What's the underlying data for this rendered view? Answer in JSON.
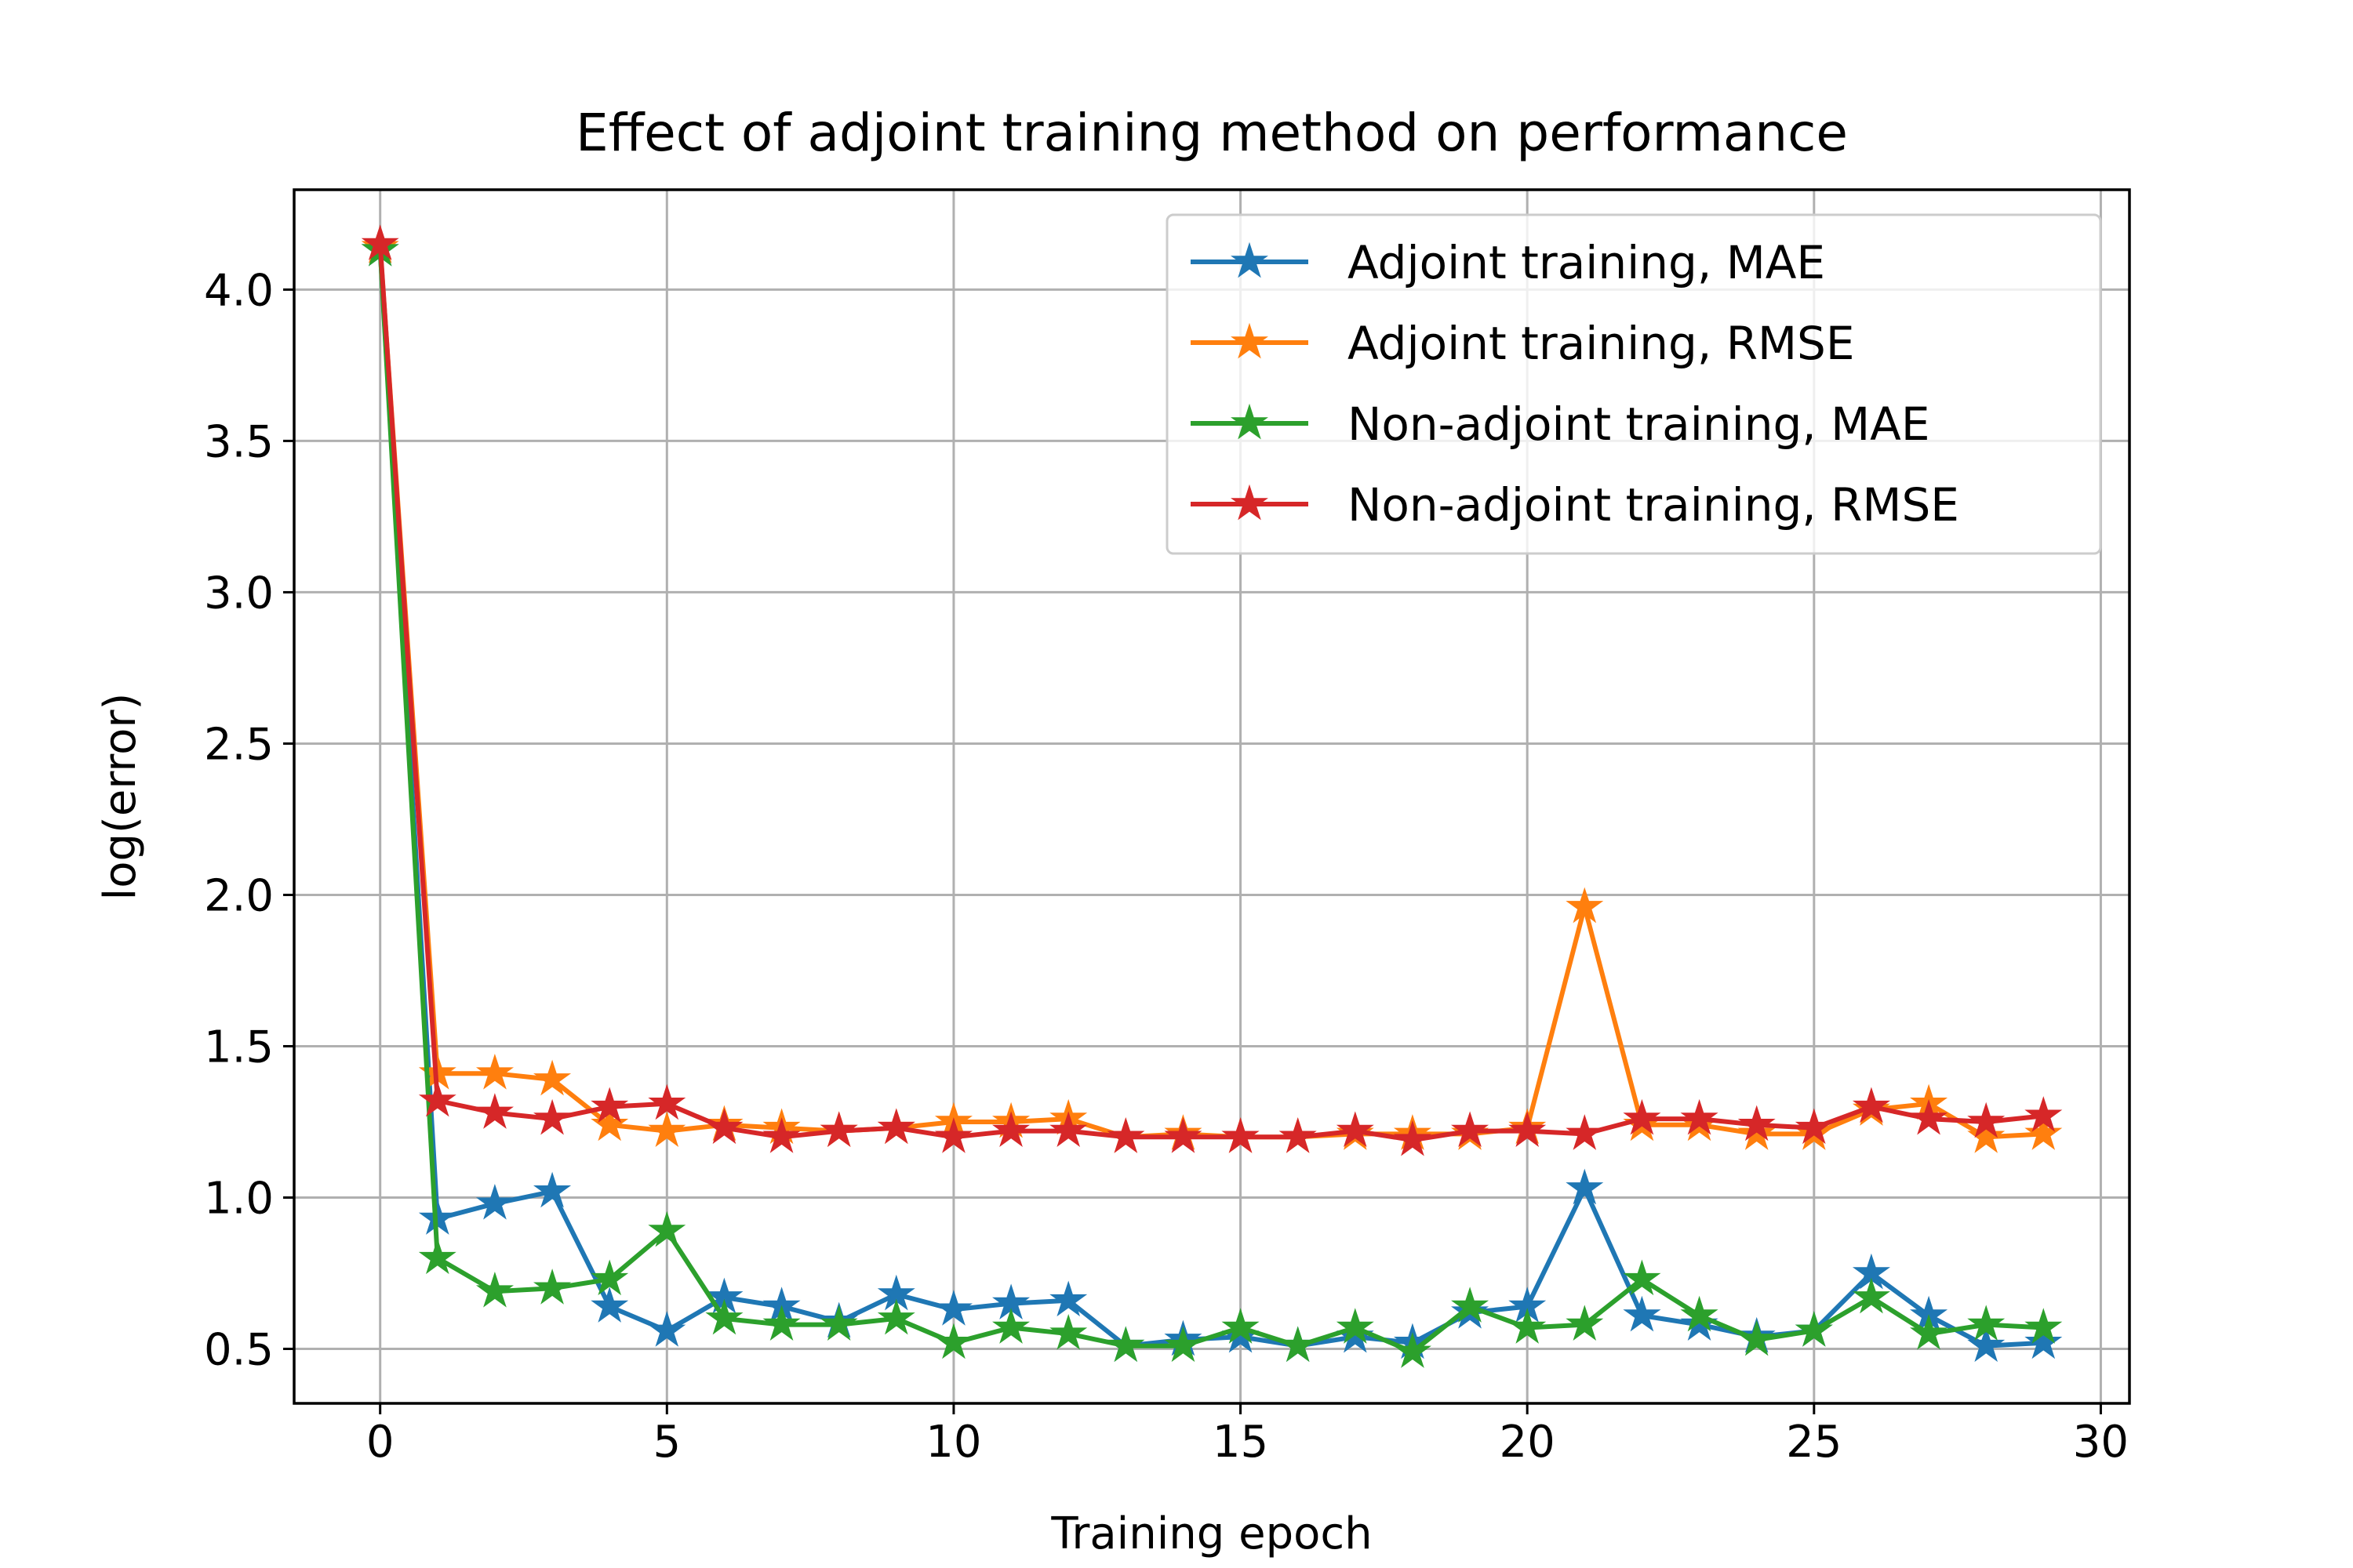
{
  "chart_data": {
    "type": "line",
    "title": "Effect of adjoint training method on performance",
    "xlabel": "Training epoch",
    "ylabel": "log(error)",
    "xlim": [
      -1.5,
      30.5
    ],
    "ylim": [
      0.32,
      4.33
    ],
    "xticks": [
      "0",
      "5",
      "10",
      "15",
      "20",
      "25",
      "30"
    ],
    "yticks": [
      "0.5",
      "1.0",
      "1.5",
      "2.0",
      "2.5",
      "3.0",
      "3.5",
      "4.0"
    ],
    "grid": true,
    "legend_position": "top-right",
    "marker": "star",
    "x": [
      0,
      1,
      2,
      3,
      4,
      5,
      6,
      7,
      8,
      9,
      10,
      11,
      12,
      13,
      14,
      15,
      16,
      17,
      18,
      19,
      20,
      21,
      22,
      23,
      24,
      25,
      26,
      27,
      28,
      29
    ],
    "series": [
      {
        "name": "Adjoint training, MAE",
        "color": "#1f77b4",
        "values": [
          4.13,
          0.93,
          0.98,
          1.02,
          0.64,
          0.56,
          0.67,
          0.64,
          0.59,
          0.68,
          0.63,
          0.65,
          0.66,
          0.51,
          0.53,
          0.54,
          0.51,
          0.54,
          0.52,
          0.62,
          0.64,
          1.03,
          0.61,
          0.58,
          0.54,
          0.56,
          0.75,
          0.61,
          0.51,
          0.52
        ]
      },
      {
        "name": "Adjoint training, RMSE",
        "color": "#ff7f0e",
        "values": [
          4.14,
          1.41,
          1.41,
          1.39,
          1.24,
          1.22,
          1.24,
          1.23,
          1.22,
          1.23,
          1.25,
          1.25,
          1.26,
          1.2,
          1.21,
          1.2,
          1.2,
          1.21,
          1.21,
          1.21,
          1.23,
          1.96,
          1.24,
          1.24,
          1.21,
          1.21,
          1.29,
          1.31,
          1.2,
          1.21
        ]
      },
      {
        "name": "Non-adjoint training, MAE",
        "color": "#2ca02c",
        "values": [
          4.13,
          0.8,
          0.69,
          0.7,
          0.73,
          0.89,
          0.6,
          0.58,
          0.58,
          0.6,
          0.52,
          0.57,
          0.55,
          0.51,
          0.51,
          0.57,
          0.51,
          0.57,
          0.49,
          0.64,
          0.57,
          0.58,
          0.73,
          0.61,
          0.53,
          0.56,
          0.67,
          0.55,
          0.58,
          0.57
        ]
      },
      {
        "name": "Non-adjoint training, RMSE",
        "color": "#d62728",
        "values": [
          4.15,
          1.32,
          1.28,
          1.26,
          1.3,
          1.31,
          1.23,
          1.2,
          1.22,
          1.23,
          1.2,
          1.22,
          1.22,
          1.2,
          1.2,
          1.2,
          1.2,
          1.22,
          1.19,
          1.22,
          1.22,
          1.21,
          1.26,
          1.26,
          1.24,
          1.23,
          1.3,
          1.26,
          1.25,
          1.27
        ]
      }
    ]
  }
}
